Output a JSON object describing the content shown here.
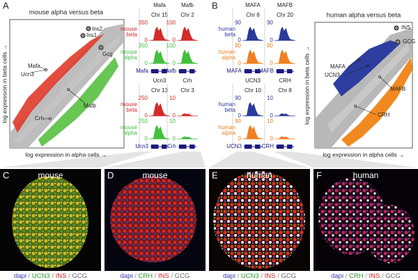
{
  "scatters": [
    {
      "letter": "A",
      "title": "mouse alpha versus beta",
      "x_label": "log expression in alpha cells →",
      "y_label": "log expression in beta cells →",
      "genes": [
        "Ins2",
        "Ins1",
        "Gcg",
        "Ucn3",
        "Mafa",
        "Mafb",
        "Crh"
      ]
    },
    {
      "letter": "B",
      "title": "human alpha versus beta",
      "x_label": "log expression in alpha cells →",
      "y_label": "log expression in beta cells →",
      "genes": [
        "INS",
        "GCG",
        "MAFA",
        "UCN3",
        "MAFB",
        "CRH"
      ]
    }
  ],
  "track_groups": [
    {
      "genes": [
        "Mafa",
        "Mafb"
      ],
      "chromosomes": [
        "Chr 15",
        "Chr 2"
      ],
      "row_labels": [
        [
          "mouse",
          "beta"
        ],
        [
          "mouse",
          "alpha"
        ]
      ],
      "row_colors": [
        "#d42a2a",
        "#44c040"
      ],
      "ticks": [
        [
          [
            350,
            0
          ],
          [
            350,
            0
          ]
        ],
        [
          [
            100,
            0
          ],
          [
            100,
            0
          ]
        ]
      ]
    },
    {
      "genes": [
        "Ucn3",
        "Crh"
      ],
      "chromosomes": [
        "Chr 13",
        "Chr 3"
      ],
      "row_labels": [
        [
          "mouse",
          "beta"
        ],
        [
          "mouse",
          "alpha"
        ]
      ],
      "row_colors": [
        "#d42a2a",
        "#44c040"
      ],
      "ticks": [
        [
          [
            250,
            0
          ],
          [
            250,
            0
          ]
        ],
        [
          [
            10,
            0
          ],
          [
            10,
            0
          ]
        ]
      ]
    },
    {
      "genes": [
        "MAFA",
        "MAFB"
      ],
      "chromosomes": [
        "Chr 8",
        "Chr 20"
      ],
      "row_labels": [
        [
          "human",
          "beta"
        ],
        [
          "human",
          "alpha"
        ]
      ],
      "row_colors": [
        "#2b3a9c",
        "#f08020"
      ],
      "ticks": [
        [
          [
            90,
            0
          ],
          [
            90,
            0
          ]
        ],
        [
          [
            90,
            0
          ],
          [
            90,
            0
          ]
        ]
      ]
    },
    {
      "genes": [
        "UCN3",
        "CRH"
      ],
      "chromosomes": [
        "Chr 10",
        "Chr 8"
      ],
      "row_labels": [
        [
          "human",
          "beta"
        ],
        [
          "human",
          "alpha"
        ]
      ],
      "row_colors": [
        "#2b3a9c",
        "#f08020"
      ],
      "ticks": [
        [
          [
            90,
            0
          ],
          [
            90,
            0
          ]
        ],
        [
          [
            10,
            0
          ],
          [
            10,
            0
          ]
        ]
      ]
    }
  ],
  "panels": [
    {
      "letter": "C",
      "title": "mouse",
      "stains": [
        "dapi",
        "UCN3",
        "INS",
        "GCG"
      ]
    },
    {
      "letter": "D",
      "title": "mouse",
      "stains": [
        "dapi",
        "CRH",
        "INS",
        "GCG"
      ]
    },
    {
      "letter": "E",
      "title": "human",
      "stains": [
        "dapi",
        "UCN3",
        "INS",
        "GCG"
      ]
    },
    {
      "letter": "F",
      "title": "human",
      "stains": [
        "dapi",
        "CRH",
        "INS",
        "GCG"
      ]
    }
  ],
  "stain_separator": "/",
  "stain_colors": [
    "#3a3ab4",
    "#2c9a2c",
    "#d02020",
    "#666666"
  ]
}
